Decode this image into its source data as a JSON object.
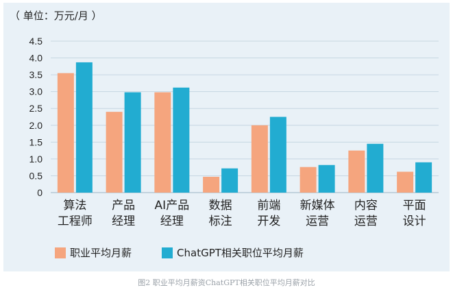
{
  "caption": "图2 职业平均月薪资ChatGPT相关职位平均月薪对比",
  "chart_data": {
    "type": "bar",
    "unit_label": "（ 单位：万元/月 ）",
    "categories": [
      [
        "算法",
        "工程师"
      ],
      [
        "产品",
        "经理"
      ],
      [
        "AI产品",
        "经理"
      ],
      [
        "数据",
        "标注"
      ],
      [
        "前端",
        "开发"
      ],
      [
        "新媒体",
        "运营"
      ],
      [
        "内容",
        "运营"
      ],
      [
        "平面",
        "设计"
      ]
    ],
    "series": [
      {
        "name": "职业平均月薪",
        "color": "#f5a57e",
        "values": [
          3.55,
          2.4,
          2.98,
          0.47,
          2.0,
          0.76,
          1.25,
          0.62
        ]
      },
      {
        "name": "ChatGPT相关职位平均月薪",
        "color": "#22acd1",
        "values": [
          3.87,
          2.98,
          3.12,
          0.72,
          2.25,
          0.82,
          1.45,
          0.9
        ]
      }
    ],
    "ylim": [
      0,
      4.5
    ],
    "yticks": [
      "0",
      "0.5",
      "1.0",
      "1.5",
      "2.0",
      "2.5",
      "3.0",
      "3.5",
      "4.0",
      "4.5"
    ],
    "grid": true,
    "legend_position": "bottom-left"
  }
}
